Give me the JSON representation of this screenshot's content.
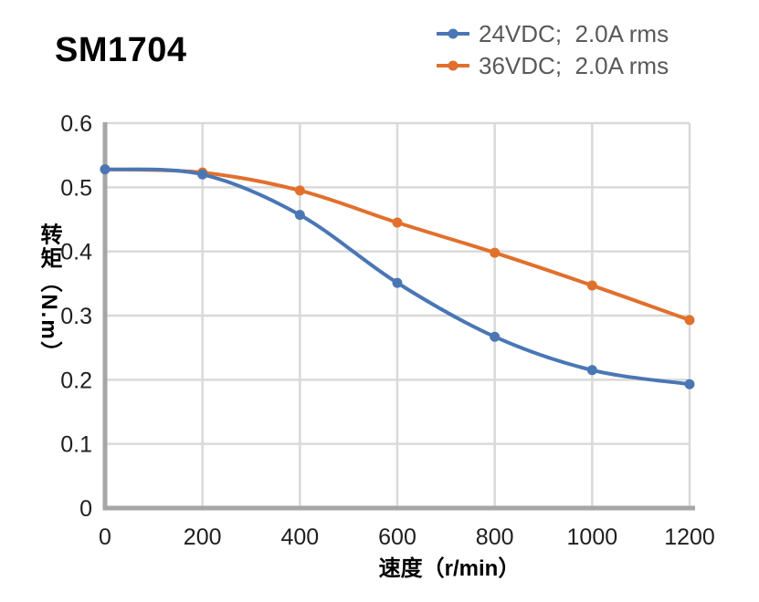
{
  "title": "SM1704",
  "chart_data": {
    "type": "line",
    "title": "SM1704",
    "x": [
      0,
      200,
      400,
      600,
      800,
      1000,
      1200
    ],
    "series": [
      {
        "name": "24VDC;  2.0A rms",
        "color": "#4a77b4",
        "values": [
          0.528,
          0.52,
          0.457,
          0.351,
          0.267,
          0.215,
          0.193
        ]
      },
      {
        "name": "36VDC;  2.0A rms",
        "color": "#e1702d",
        "values": [
          0.528,
          0.523,
          0.495,
          0.445,
          0.398,
          0.347,
          0.293
        ]
      }
    ],
    "xlabel": "速度（r/min）",
    "ylabel": "转矩（N.m）",
    "xlim": [
      0,
      1200
    ],
    "ylim": [
      0,
      0.6
    ],
    "x_ticks": [
      0,
      200,
      400,
      600,
      800,
      1000,
      1200
    ],
    "y_ticks": [
      0,
      0.1,
      0.2,
      0.3,
      0.4,
      0.5,
      0.6
    ],
    "grid": true,
    "smooth": true,
    "legend_position": "top-right"
  },
  "colors": {
    "grid": "#d9d9d9",
    "axis": "#a6a6a6",
    "tick_text": "#1f1f1f",
    "legend_text": "#595959",
    "title_text": "#000000"
  }
}
